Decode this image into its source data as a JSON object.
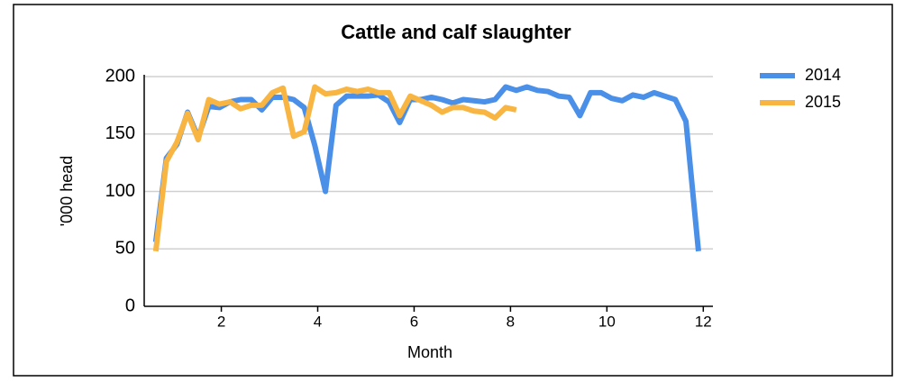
{
  "chart_data": {
    "type": "line",
    "title": "Cattle and calf slaughter",
    "xlabel": "Month",
    "ylabel": "'000 head",
    "xlim": [
      0.4,
      12.2
    ],
    "xticks": [
      2,
      4,
      6,
      8,
      10,
      12
    ],
    "ylim": [
      0,
      200
    ],
    "yticks": [
      0,
      50,
      100,
      150,
      200
    ],
    "grid": true,
    "legend": "right",
    "series": [
      {
        "name": "2014",
        "color": "#4a8fe8",
        "x": [
          0.64,
          0.86,
          1.08,
          1.3,
          1.52,
          1.74,
          1.96,
          2.18,
          2.4,
          2.62,
          2.84,
          3.06,
          3.28,
          3.5,
          3.72,
          3.94,
          4.16,
          4.38,
          4.6,
          4.82,
          5.04,
          5.26,
          5.48,
          5.7,
          5.92,
          6.14,
          6.36,
          6.58,
          6.8,
          7.02,
          7.24,
          7.46,
          7.68,
          7.9,
          8.12,
          8.34,
          8.56,
          8.78,
          9.0,
          9.22,
          9.44,
          9.66,
          9.88,
          10.1,
          10.32,
          10.54,
          10.76,
          10.98,
          11.2,
          11.42,
          11.64,
          11.9
        ],
        "values": [
          56,
          129,
          141,
          169,
          147,
          174,
          173,
          178,
          180,
          180,
          171,
          182,
          182,
          180,
          173,
          140,
          100,
          175,
          183,
          183,
          183,
          184,
          178,
          160,
          180,
          180,
          182,
          180,
          177,
          180,
          179,
          178,
          180,
          191,
          188,
          191,
          188,
          187,
          183,
          182,
          166,
          186,
          186,
          181,
          179,
          184,
          182,
          186,
          183,
          180,
          161,
          48
        ]
      },
      {
        "name": "2015",
        "color": "#f9b541",
        "x": [
          0.64,
          0.86,
          1.08,
          1.3,
          1.52,
          1.74,
          1.96,
          2.18,
          2.4,
          2.62,
          2.84,
          3.06,
          3.28,
          3.5,
          3.72,
          3.94,
          4.16,
          4.38,
          4.6,
          4.82,
          5.04,
          5.26,
          5.48,
          5.7,
          5.92,
          6.14,
          6.36,
          6.58,
          6.8,
          7.02,
          7.24,
          7.46,
          7.68,
          7.9,
          8.12
        ],
        "values": [
          48,
          126,
          143,
          168,
          145,
          180,
          176,
          178,
          172,
          175,
          175,
          186,
          190,
          148,
          152,
          191,
          185,
          186,
          189,
          187,
          189,
          186,
          186,
          166,
          183,
          179,
          175,
          169,
          173,
          173,
          170,
          169,
          164,
          173,
          171
        ]
      }
    ]
  }
}
